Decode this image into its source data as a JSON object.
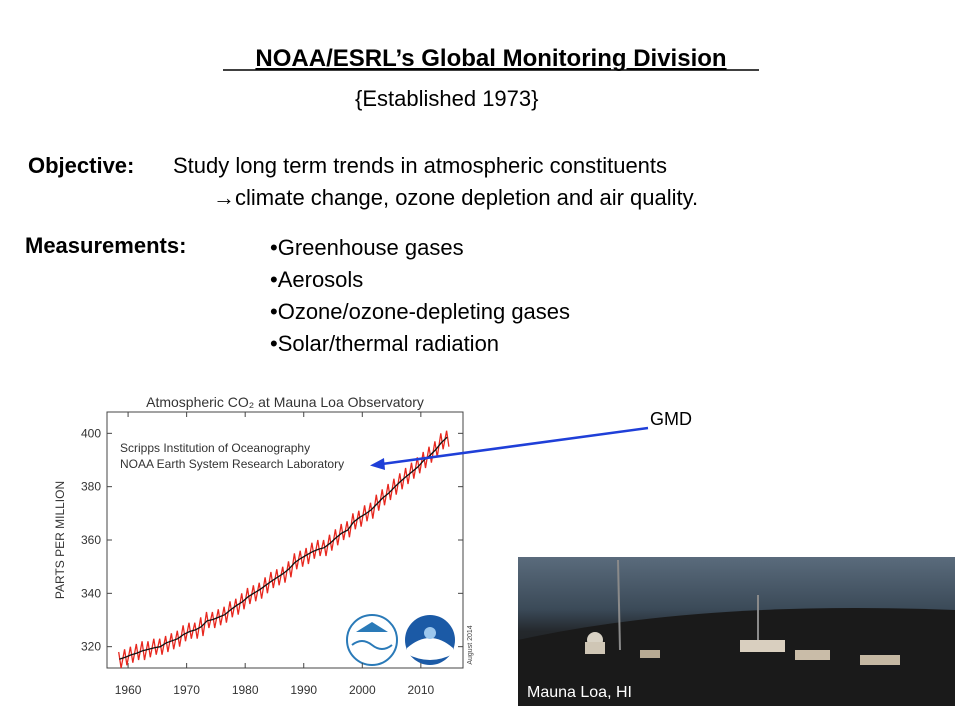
{
  "slide": {
    "title": "NOAA/ESRL’s Global Monitoring Division",
    "subtitle": "{Established 1973}",
    "objective_label": "Objective:",
    "objective_lines": [
      "Study long term trends in atmospheric constituents",
      "→climate change, ozone depletion and air quality."
    ],
    "measurements_label": "Measurements:",
    "measurements": [
      "•Greenhouse gases",
      "•Aerosols",
      "•Ozone/ozone-depleting gases",
      "•Solar/thermal radiation"
    ],
    "annotation": "GMD",
    "photo_caption": "Mauna Loa, HI"
  },
  "chart_data": {
    "type": "line",
    "title": "Atmospheric CO₂ at Mauna Loa Observatory",
    "ylabel": "PARTS PER MILLION",
    "notes": [
      "Scripps Institution of Oceanography",
      "NOAA Earth System Research Laboratory"
    ],
    "date_note": "August 2014",
    "xlim": [
      1956.4,
      2017.2
    ],
    "ylim": [
      312,
      408
    ],
    "xticks": [
      1960,
      1970,
      1980,
      1990,
      2000,
      2010
    ],
    "yticks": [
      320,
      340,
      360,
      380,
      400
    ],
    "series": [
      {
        "color": "#e8271e",
        "x": [
          1958.4,
          1958.8,
          1959.4,
          1959.8,
          1960.4,
          1960.8,
          1961.4,
          1961.8,
          1962.4,
          1962.8,
          1963.4,
          1963.8,
          1964.4,
          1964.8,
          1965.4,
          1965.8,
          1966.4,
          1966.8,
          1967.4,
          1967.8,
          1968.4,
          1968.8,
          1969.4,
          1969.8,
          1970.4,
          1970.8,
          1971.4,
          1971.8,
          1972.4,
          1972.8,
          1973.4,
          1973.8,
          1974.4,
          1974.8,
          1975.4,
          1975.8,
          1976.4,
          1976.8,
          1977.4,
          1977.8,
          1978.4,
          1978.8,
          1979.4,
          1979.8,
          1980.4,
          1980.8,
          1981.4,
          1981.8,
          1982.4,
          1982.8,
          1983.4,
          1983.8,
          1984.4,
          1984.8,
          1985.4,
          1985.8,
          1986.4,
          1986.8,
          1987.4,
          1987.8,
          1988.4,
          1988.8,
          1989.4,
          1989.8,
          1990.4,
          1990.8,
          1991.4,
          1991.8,
          1992.4,
          1992.8,
          1993.4,
          1993.8,
          1994.4,
          1994.8,
          1995.4,
          1995.8,
          1996.4,
          1996.8,
          1997.4,
          1997.8,
          1998.4,
          1998.8,
          1999.4,
          1999.8,
          2000.4,
          2000.8,
          2001.4,
          2001.8,
          2002.4,
          2002.8,
          2003.4,
          2003.8,
          2004.4,
          2004.8,
          2005.4,
          2005.8,
          2006.4,
          2006.8,
          2007.4,
          2007.8,
          2008.4,
          2008.8,
          2009.4,
          2009.8,
          2010.4,
          2010.8,
          2011.4,
          2011.8,
          2012.4,
          2012.8,
          2013.4,
          2013.8,
          2014.4,
          2014.8
        ],
        "values": [
          318,
          312,
          319,
          313,
          320,
          314,
          321,
          315,
          322,
          315,
          322,
          316,
          323,
          317,
          323,
          317,
          324,
          318,
          325,
          319,
          326,
          320,
          328,
          322,
          329,
          323,
          329,
          323,
          331,
          324,
          333,
          327,
          333,
          327,
          334,
          328,
          335,
          329,
          337,
          331,
          338,
          332,
          340,
          334,
          342,
          336,
          343,
          337,
          344,
          338,
          346,
          340,
          348,
          342,
          349,
          343,
          350,
          344,
          352,
          346,
          355,
          349,
          356,
          350,
          357,
          351,
          359,
          353,
          360,
          354,
          360,
          354,
          362,
          356,
          364,
          358,
          366,
          360,
          367,
          361,
          370,
          364,
          371,
          365,
          373,
          367,
          374,
          368,
          377,
          371,
          379,
          373,
          381,
          375,
          383,
          377,
          385,
          379,
          387,
          381,
          389,
          383,
          391,
          385,
          393,
          387,
          395,
          389,
          397,
          391,
          400,
          394,
          401,
          395
        ]
      },
      {
        "color": "#111111",
        "x": [
          1958.5,
          1959.5,
          1960.5,
          1961.5,
          1962.5,
          1963.5,
          1964.5,
          1965.5,
          1966.5,
          1967.5,
          1968.5,
          1969.5,
          1970.5,
          1971.5,
          1972.5,
          1973.5,
          1974.5,
          1975.5,
          1976.5,
          1977.5,
          1978.5,
          1979.5,
          1980.5,
          1981.5,
          1982.5,
          1983.5,
          1984.5,
          1985.5,
          1986.5,
          1987.5,
          1988.5,
          1989.5,
          1990.5,
          1991.5,
          1992.5,
          1993.5,
          1994.5,
          1995.5,
          1996.5,
          1997.5,
          1998.5,
          1999.5,
          2000.5,
          2001.5,
          2002.5,
          2003.5,
          2004.5,
          2005.5,
          2006.5,
          2007.5,
          2008.5,
          2009.5,
          2010.5,
          2011.5,
          2012.5,
          2013.5,
          2014.5
        ],
        "values": [
          315.3,
          316.0,
          316.9,
          317.6,
          318.5,
          319.0,
          319.6,
          320.0,
          321.4,
          322.2,
          323.0,
          324.6,
          325.7,
          326.3,
          327.5,
          329.7,
          330.2,
          331.1,
          332.0,
          333.8,
          335.4,
          336.8,
          338.7,
          340.1,
          341.4,
          343.0,
          344.6,
          346.0,
          347.4,
          349.2,
          351.6,
          353.1,
          354.4,
          355.6,
          356.5,
          357.1,
          358.8,
          360.8,
          362.6,
          363.7,
          366.7,
          368.4,
          369.7,
          371.3,
          373.5,
          375.8,
          377.5,
          379.8,
          381.9,
          383.8,
          385.6,
          387.4,
          389.9,
          391.6,
          393.8,
          396.5,
          398.6
        ]
      }
    ]
  }
}
